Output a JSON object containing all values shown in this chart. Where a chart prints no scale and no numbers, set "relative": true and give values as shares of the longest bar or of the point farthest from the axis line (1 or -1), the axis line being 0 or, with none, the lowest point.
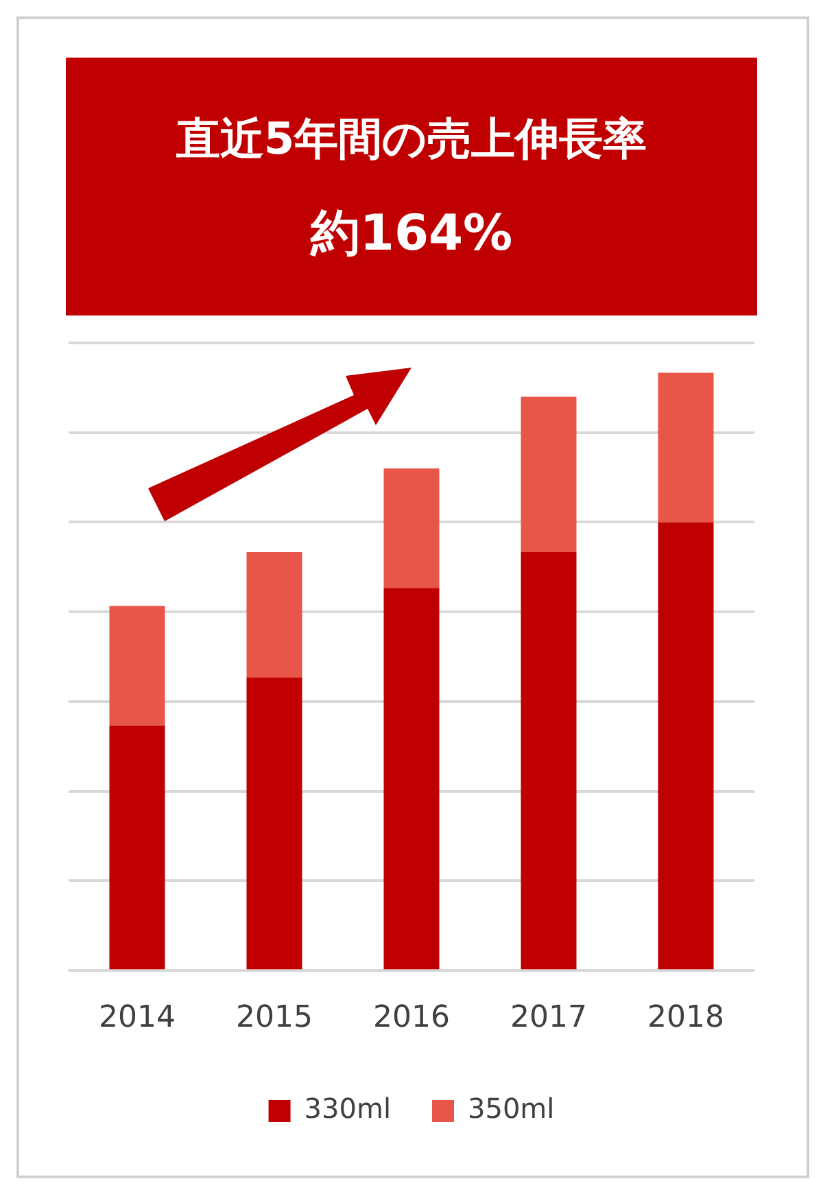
{
  "chart_data": {
    "type": "bar",
    "title": "直近5年間の売上伸長率",
    "subtitle": "約164%",
    "categories": [
      "2014",
      "2015",
      "2016",
      "2017",
      "2018"
    ],
    "stacked": true,
    "relative": true,
    "grid": "y",
    "legend": "bottom",
    "series": [
      {
        "name": "330ml",
        "color": "#c00000",
        "values": [
          0.41,
          0.49,
          0.64,
          0.7,
          0.75
        ]
      },
      {
        "name": "350ml",
        "color": "#e8564a",
        "values": [
          0.2,
          0.21,
          0.2,
          0.26,
          0.25
        ]
      }
    ]
  }
}
